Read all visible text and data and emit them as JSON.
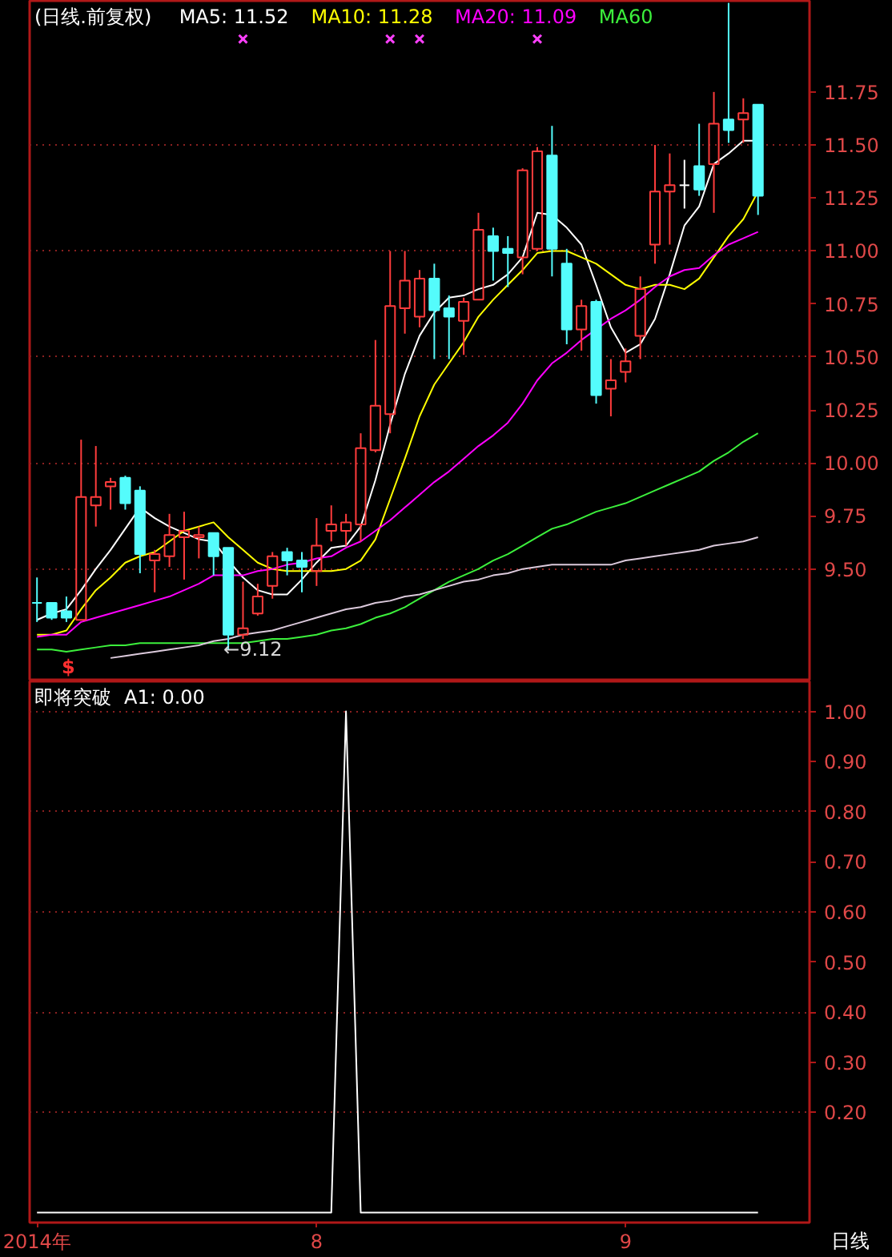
{
  "chart_data": [
    {
      "type": "candlestick",
      "title": "(日线.前复权)",
      "legend": "top left",
      "grid": "y",
      "tick_labels": "y",
      "categories": [
        null,
        null,
        null,
        null,
        null,
        null,
        null,
        null,
        null,
        null,
        null,
        null,
        null,
        null,
        null,
        null,
        null,
        null,
        null,
        null,
        null,
        null,
        null,
        null,
        null,
        null,
        null,
        null,
        null,
        null,
        null,
        null,
        null,
        null,
        null,
        null,
        null,
        null,
        null,
        null,
        null,
        null,
        null,
        null,
        null,
        null,
        null,
        null,
        null,
        null
      ],
      "ylim": [
        8.97,
        12.18
      ],
      "yticks": [
        {
          "value": 9.5,
          "label": "9.50"
        },
        9.75,
        {
          "value": 10,
          "label": "10.00"
        },
        10.25,
        {
          "value": 10.5,
          "label": "10.50"
        },
        10.75,
        {
          "value": 11,
          "label": "11.00"
        },
        11.25,
        {
          "value": 11.5,
          "label": "11.50"
        },
        11.75
      ],
      "ohlc": [
        [
          9.34,
          9.46,
          9.25,
          9.34
        ],
        [
          9.34,
          9.34,
          9.26,
          9.27
        ],
        [
          9.3,
          9.37,
          9.25,
          9.27
        ],
        [
          9.26,
          10.11,
          9.26,
          9.84
        ],
        [
          9.8,
          10.08,
          9.7,
          9.84
        ],
        [
          9.89,
          9.93,
          9.78,
          9.91
        ],
        [
          9.93,
          9.94,
          9.78,
          9.81
        ],
        [
          9.87,
          9.89,
          9.48,
          9.57
        ],
        [
          9.54,
          9.59,
          9.39,
          9.57
        ],
        [
          9.56,
          9.76,
          9.51,
          9.66
        ],
        [
          9.65,
          9.77,
          9.45,
          9.68
        ],
        [
          9.65,
          9.7,
          9.55,
          9.66
        ],
        [
          9.67,
          9.67,
          9.47,
          9.56
        ],
        [
          9.6,
          9.6,
          9.12,
          9.19
        ],
        [
          9.19,
          9.44,
          9.17,
          9.22
        ],
        [
          9.29,
          9.43,
          9.28,
          9.37
        ],
        [
          9.42,
          9.58,
          9.36,
          9.56
        ],
        [
          9.58,
          9.6,
          9.47,
          9.54
        ],
        [
          9.54,
          9.58,
          9.39,
          9.51
        ],
        [
          9.49,
          9.74,
          9.42,
          9.61
        ],
        [
          9.68,
          9.8,
          9.63,
          9.71
        ],
        [
          9.68,
          9.76,
          9.61,
          9.72
        ],
        [
          9.71,
          10.14,
          9.63,
          10.07
        ],
        [
          10.06,
          10.58,
          10.05,
          10.27
        ],
        [
          10.23,
          11.0,
          10.14,
          10.74
        ],
        [
          10.73,
          11.0,
          10.61,
          10.86
        ],
        [
          10.69,
          10.91,
          10.64,
          10.87
        ],
        [
          10.87,
          10.94,
          10.49,
          10.72
        ],
        [
          10.73,
          10.79,
          10.49,
          10.69
        ],
        [
          10.67,
          10.78,
          10.51,
          10.76
        ],
        [
          10.77,
          11.18,
          10.77,
          11.1
        ],
        [
          11.07,
          11.11,
          10.86,
          11.0
        ],
        [
          11.01,
          11.07,
          10.83,
          10.99
        ],
        [
          10.97,
          11.39,
          10.89,
          11.38
        ],
        [
          11.01,
          11.49,
          11.0,
          11.47
        ],
        [
          11.45,
          11.59,
          10.88,
          11.01
        ],
        [
          10.94,
          11.01,
          10.56,
          10.63
        ],
        [
          10.63,
          10.77,
          10.53,
          10.74
        ],
        [
          10.76,
          10.77,
          10.28,
          10.32
        ],
        [
          10.35,
          10.49,
          10.22,
          10.39
        ],
        [
          10.43,
          10.54,
          10.38,
          10.48
        ],
        [
          10.6,
          10.88,
          10.49,
          10.82
        ],
        [
          11.03,
          11.5,
          10.94,
          11.28
        ],
        [
          11.28,
          11.46,
          11.03,
          11.31
        ],
        [
          11.31,
          11.43,
          11.2,
          11.31
        ],
        [
          11.4,
          11.6,
          11.26,
          11.29
        ],
        [
          11.41,
          11.75,
          11.18,
          11.6
        ],
        [
          11.62,
          12.17,
          11.51,
          11.57
        ],
        [
          11.62,
          11.72,
          11.51,
          11.65
        ],
        [
          11.69,
          11.69,
          11.17,
          11.26
        ]
      ],
      "colors": [
        "#54fcfc",
        "#54fcfc",
        "#54fcfc",
        "#ff3c3c",
        "#ff3c3c",
        "#ff3c3c",
        "#54fcfc",
        "#54fcfc",
        "#ff3c3c",
        "#ff3c3c",
        "#ff3c3c",
        "#ff3c3c",
        "#54fcfc",
        "#54fcfc",
        "#ff3c3c",
        "#ff3c3c",
        "#ff3c3c",
        "#54fcfc",
        "#54fcfc",
        "#ff3c3c",
        "#ff3c3c",
        "#ff3c3c",
        "#ff3c3c",
        "#ff3c3c",
        "#ff3c3c",
        "#ff3c3c",
        "#ff3c3c",
        "#54fcfc",
        "#54fcfc",
        "#ff3c3c",
        "#ff3c3c",
        "#54fcfc",
        "#54fcfc",
        "#ff3c3c",
        "#ff3c3c",
        "#54fcfc",
        "#54fcfc",
        "#ff3c3c",
        "#54fcfc",
        "#ff3c3c",
        "#ff3c3c",
        "#ff3c3c",
        "#ff3c3c",
        "#ff3c3c",
        "#ffffff",
        "#54fcfc",
        "#ff3c3c",
        "#54fcfc",
        "#ff3c3c",
        "#54fcfc"
      ],
      "series": [
        {
          "type": "line",
          "name": "MA5: 11.52",
          "color": "#ffffff",
          "values": [
            9.26,
            9.29,
            9.31,
            9.4,
            9.5,
            9.59,
            9.69,
            9.79,
            9.74,
            9.7,
            9.67,
            9.64,
            9.63,
            9.54,
            9.46,
            9.4,
            9.38,
            9.38,
            9.45,
            9.53,
            9.6,
            9.61,
            9.7,
            9.92,
            10.18,
            10.42,
            10.6,
            10.71,
            10.78,
            10.79,
            10.82,
            10.84,
            10.89,
            10.97,
            11.18,
            11.17,
            11.11,
            11.03,
            10.84,
            10.64,
            10.52,
            10.56,
            10.68,
            10.89,
            11.12,
            11.21,
            11.41,
            11.46,
            11.52,
            11.52
          ]
        },
        {
          "type": "line",
          "name": "MA10: 11.28",
          "color": "#ffff00",
          "values": [
            9.19,
            9.19,
            9.21,
            9.31,
            9.4,
            9.46,
            9.53,
            9.56,
            9.58,
            9.63,
            9.68,
            9.7,
            9.72,
            9.65,
            9.59,
            9.53,
            9.5,
            9.49,
            9.49,
            9.49,
            9.49,
            9.5,
            9.54,
            9.64,
            9.83,
            10.02,
            10.22,
            10.37,
            10.47,
            10.57,
            10.69,
            10.77,
            10.84,
            10.91,
            10.99,
            11.0,
            11.0,
            10.97,
            10.94,
            10.89,
            10.84,
            10.82,
            10.84,
            10.84,
            10.82,
            10.87,
            10.97,
            11.07,
            11.15,
            11.28
          ]
        },
        {
          "type": "line",
          "name": "MA20: 11.09",
          "color": "#ff00ff",
          "values": [
            9.18,
            9.19,
            9.19,
            9.25,
            9.27,
            9.29,
            9.31,
            9.33,
            9.35,
            9.37,
            9.4,
            9.43,
            9.47,
            9.47,
            9.47,
            9.49,
            9.5,
            9.52,
            9.53,
            9.55,
            9.56,
            9.6,
            9.63,
            9.68,
            9.73,
            9.79,
            9.85,
            9.91,
            9.96,
            10.02,
            10.08,
            10.13,
            10.19,
            10.28,
            10.39,
            10.47,
            10.52,
            10.58,
            10.63,
            10.68,
            10.72,
            10.77,
            10.83,
            10.88,
            10.91,
            10.92,
            10.98,
            11.03,
            11.06,
            11.09
          ]
        },
        {
          "type": "line",
          "name": "MA60",
          "color": "#3cf03c",
          "values": [
            9.12,
            9.12,
            9.11,
            9.12,
            9.13,
            9.14,
            9.14,
            9.15,
            9.15,
            9.15,
            9.15,
            9.15,
            9.15,
            9.15,
            9.15,
            9.16,
            9.17,
            9.17,
            9.18,
            9.19,
            9.21,
            9.22,
            9.24,
            9.27,
            9.29,
            9.32,
            9.36,
            9.4,
            9.44,
            9.47,
            9.5,
            9.54,
            9.57,
            9.61,
            9.65,
            9.69,
            9.71,
            9.74,
            9.77,
            9.79,
            9.81,
            9.84,
            9.87,
            9.9,
            9.93,
            9.96,
            10.01,
            10.05,
            10.1,
            10.14
          ]
        },
        {
          "type": "line",
          "color": "#dccadc",
          "values": [
            null,
            null,
            null,
            null,
            null,
            9.08,
            9.09,
            9.1,
            9.11,
            9.12,
            9.13,
            9.14,
            9.16,
            9.17,
            9.19,
            9.2,
            9.21,
            9.23,
            9.25,
            9.27,
            9.29,
            9.31,
            9.32,
            9.34,
            9.35,
            9.37,
            9.38,
            9.4,
            9.42,
            9.44,
            9.45,
            9.47,
            9.48,
            9.5,
            9.51,
            9.52,
            9.52,
            9.52,
            9.52,
            9.52,
            9.54,
            9.55,
            9.56,
            9.57,
            9.58,
            9.59,
            9.61,
            9.62,
            9.63,
            9.65
          ]
        },
        {
          "type": "scatter",
          "marker": "cross",
          "color": "#ff40ff",
          "values": [
            null,
            null,
            null,
            null,
            null,
            null,
            null,
            null,
            null,
            null,
            null,
            null,
            null,
            null,
            12.0,
            null,
            null,
            null,
            null,
            null,
            null,
            null,
            null,
            null,
            12.0,
            null,
            12.0,
            null,
            null,
            null,
            null,
            null,
            null,
            null,
            12.0,
            null,
            null,
            null,
            null,
            null,
            null,
            null,
            null,
            null,
            null,
            null,
            null,
            null,
            null,
            null
          ]
        }
      ],
      "annotations": [
        {
          "text": "←9.12",
          "y": 9.12
        },
        "$"
      ]
    },
    {
      "type": "line",
      "title": "即将突破",
      "legend": "top left",
      "grid": "y",
      "categories": [
        "2014年",
        null,
        null,
        null,
        null,
        null,
        null,
        null,
        null,
        null,
        null,
        null,
        null,
        null,
        null,
        null,
        null,
        null,
        null,
        "8",
        null,
        null,
        null,
        null,
        null,
        null,
        null,
        null,
        null,
        null,
        null,
        null,
        null,
        null,
        null,
        null,
        null,
        null,
        null,
        null,
        "9",
        null,
        null,
        null,
        null,
        null,
        null,
        null,
        null,
        null
      ],
      "ylim": [
        -0.02,
        1.06
      ],
      "yticks": [
        {
          "value": 0.2,
          "label": "0.20"
        },
        {
          "value": 0.3,
          "label": "0.30"
        },
        {
          "value": 0.4,
          "label": "0.40"
        },
        {
          "value": 0.5,
          "label": "0.50"
        },
        {
          "value": 0.6,
          "label": "0.60"
        },
        {
          "value": 0.7,
          "label": "0.70"
        },
        {
          "value": 0.8,
          "label": "0.80"
        },
        {
          "value": 0.9,
          "label": "0.90"
        },
        {
          "value": 1,
          "label": "1.00"
        }
      ],
      "series": [
        {
          "name": "A1: 0.00",
          "color": "#ffffff",
          "values": [
            0,
            0,
            0,
            0,
            0,
            0,
            0,
            0,
            0,
            0,
            0,
            0,
            0,
            0,
            0,
            0,
            0,
            0,
            0,
            0,
            0,
            1,
            0,
            0,
            0,
            0,
            0,
            0,
            0,
            0,
            0,
            0,
            0,
            0,
            0,
            0,
            0,
            0,
            0,
            0,
            0,
            0,
            0,
            0,
            0,
            0,
            0,
            0,
            0,
            0
          ]
        }
      ],
      "annotations": [
        "日线"
      ]
    }
  ]
}
